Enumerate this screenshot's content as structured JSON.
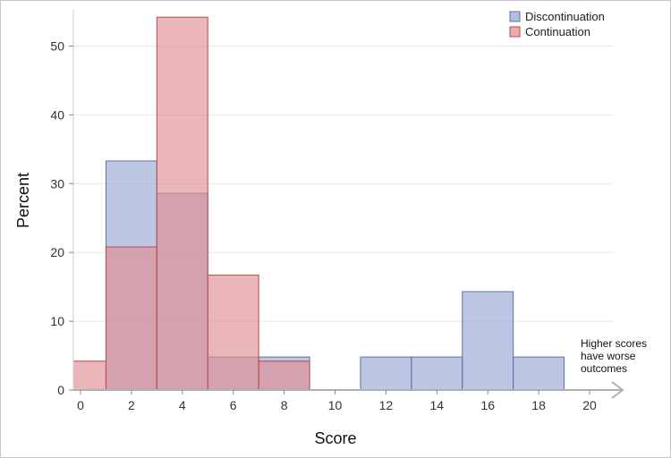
{
  "chart_data": {
    "type": "histogram",
    "xlabel": "Score",
    "ylabel": "Percent",
    "xlim": [
      -0.5,
      21
    ],
    "ylim": [
      0,
      55
    ],
    "x_ticks": [
      0,
      2,
      4,
      6,
      8,
      10,
      12,
      14,
      16,
      18,
      20
    ],
    "y_ticks": [
      0,
      10,
      20,
      30,
      40,
      50
    ],
    "grid": true,
    "legend_position": "top-right",
    "bin_width": 2,
    "series": [
      {
        "name": "Discontinuation",
        "color": "#9aa8d2",
        "edge_color": "#5e6fa8",
        "bins": [
          {
            "start": 1,
            "end": 3,
            "value": 33.3
          },
          {
            "start": 3,
            "end": 5,
            "value": 28.6
          },
          {
            "start": 5,
            "end": 7,
            "value": 4.8
          },
          {
            "start": 7,
            "end": 9,
            "value": 4.8
          },
          {
            "start": 11,
            "end": 13,
            "value": 4.8
          },
          {
            "start": 13,
            "end": 15,
            "value": 4.8
          },
          {
            "start": 15,
            "end": 17,
            "value": 14.3
          },
          {
            "start": 17,
            "end": 19,
            "value": 4.8
          }
        ]
      },
      {
        "name": "Continuation",
        "color": "#e08f93",
        "edge_color": "#b84a52",
        "bins": [
          {
            "start": -1,
            "end": 1,
            "value": 4.2
          },
          {
            "start": 1,
            "end": 3,
            "value": 20.8
          },
          {
            "start": 3,
            "end": 5,
            "value": 54.2
          },
          {
            "start": 5,
            "end": 7,
            "value": 16.7
          },
          {
            "start": 7,
            "end": 9,
            "value": 4.2
          }
        ]
      }
    ],
    "annotation": {
      "lines": [
        "Higher scores",
        "have worse",
        "outcomes"
      ],
      "arrow_direction": "right"
    }
  }
}
